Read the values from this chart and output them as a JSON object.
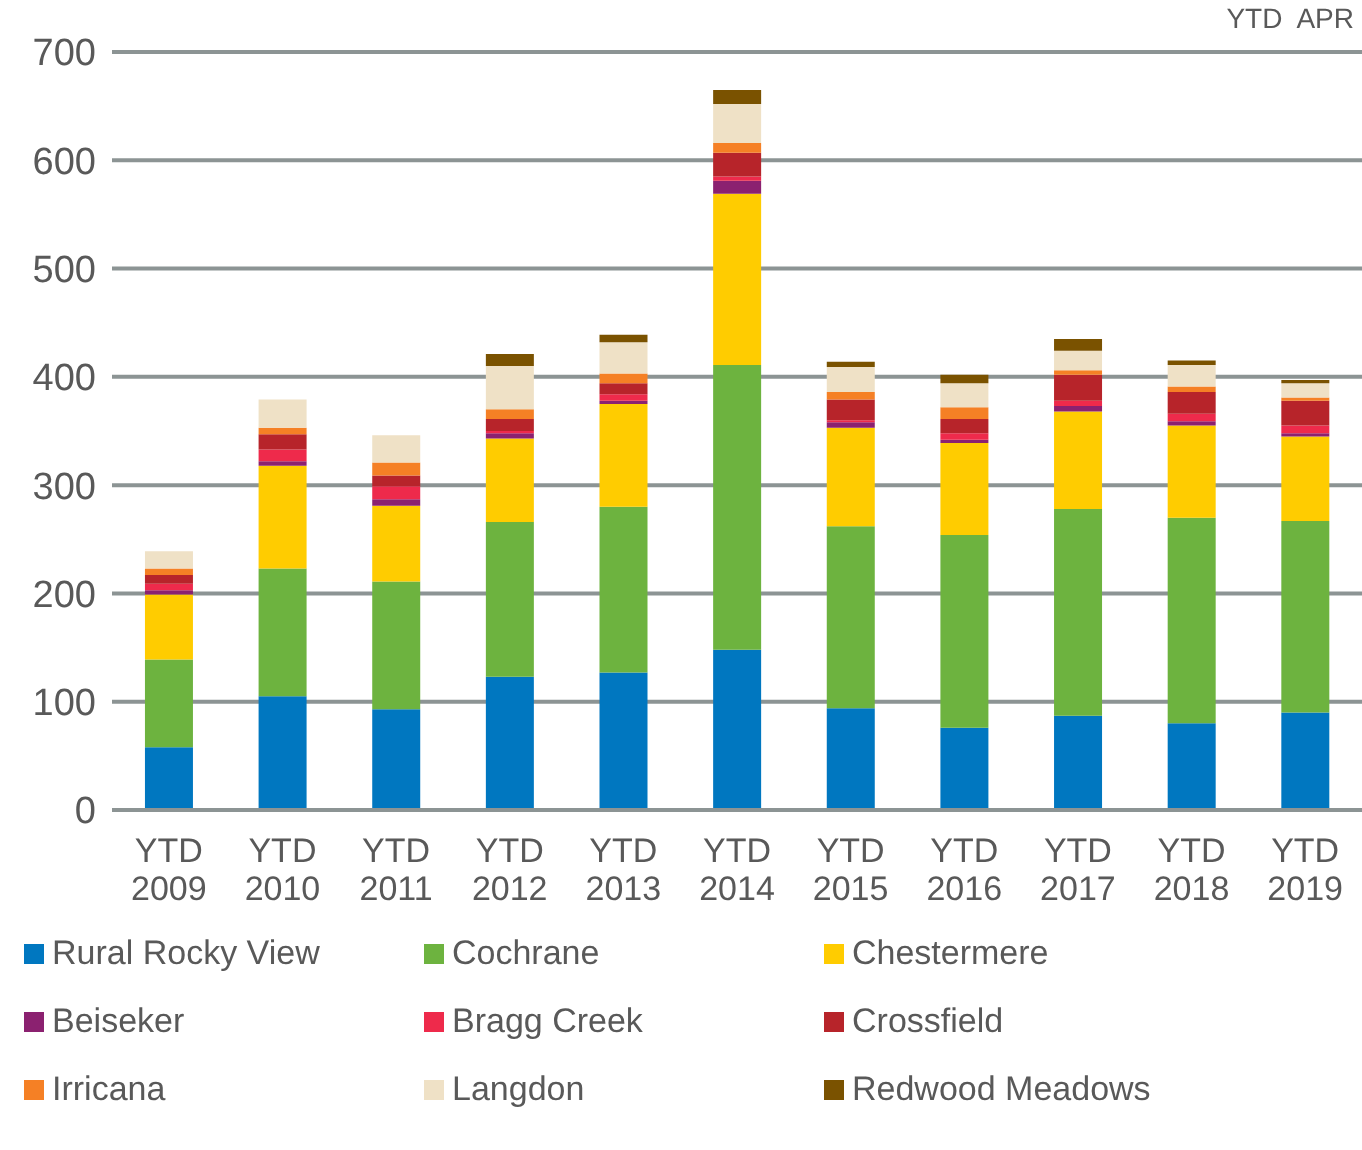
{
  "chart_data": {
    "type": "bar",
    "subtitle": "YTD  APR",
    "stacked": true,
    "categories": [
      "YTD 2009",
      "YTD 2010",
      "YTD 2011",
      "YTD 2012",
      "YTD 2013",
      "YTD 2014",
      "YTD 2015",
      "YTD 2016",
      "YTD 2017",
      "YTD 2018",
      "YTD 2019"
    ],
    "ylim": [
      0,
      700
    ],
    "yticks": [
      0,
      100,
      200,
      300,
      400,
      500,
      600,
      700
    ],
    "grid": "y",
    "legend": "bottom",
    "series": [
      {
        "name": "Rural Rocky View",
        "color": "#0077c0",
        "values": [
          58,
          105,
          93,
          123,
          127,
          148,
          94,
          76,
          87,
          80,
          90
        ]
      },
      {
        "name": "Cochrane",
        "color": "#6db33f",
        "values": [
          81,
          118,
          118,
          143,
          153,
          263,
          168,
          178,
          191,
          190,
          177
        ]
      },
      {
        "name": "Chestermere",
        "color": "#ffcc00",
        "values": [
          60,
          95,
          70,
          77,
          95,
          158,
          91,
          85,
          90,
          85,
          78
        ]
      },
      {
        "name": "Beiseker",
        "color": "#8b2170",
        "values": [
          4,
          4,
          6,
          5,
          3,
          12,
          5,
          3,
          5,
          4,
          3
        ]
      },
      {
        "name": "Bragg Creek",
        "color": "#ee2a4b",
        "values": [
          6,
          11,
          12,
          2,
          6,
          4,
          2,
          6,
          5,
          7,
          7
        ]
      },
      {
        "name": "Crossfield",
        "color": "#b7242a",
        "values": [
          8,
          14,
          10,
          11,
          10,
          22,
          19,
          13,
          24,
          20,
          23
        ]
      },
      {
        "name": "Irricana",
        "color": "#f58025",
        "values": [
          6,
          6,
          12,
          9,
          9,
          9,
          7,
          11,
          4,
          5,
          3
        ]
      },
      {
        "name": "Langdon",
        "color": "#efe1c6",
        "values": [
          16,
          26,
          25,
          40,
          29,
          36,
          23,
          22,
          18,
          20,
          13
        ]
      },
      {
        "name": "Redwood Meadows",
        "color": "#7a5200",
        "values": [
          0,
          0,
          0,
          11,
          7,
          13,
          5,
          8,
          11,
          4,
          3
        ]
      }
    ]
  }
}
